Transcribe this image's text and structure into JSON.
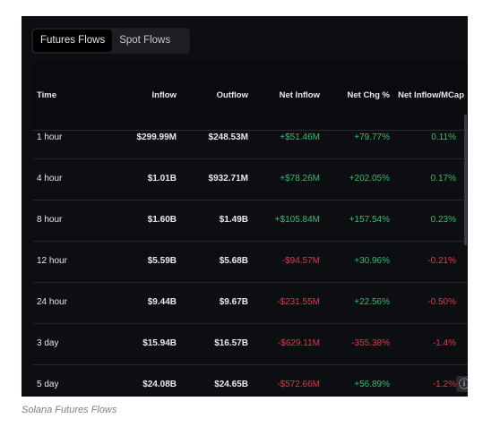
{
  "tabs": [
    {
      "label": "Futures Flows",
      "active": true
    },
    {
      "label": "Spot Flows",
      "active": false
    }
  ],
  "columns": [
    "Time",
    "Inflow",
    "Outflow",
    "Net Inflow",
    "Net Chg %",
    "Net Inflow/MCap"
  ],
  "rows": [
    {
      "time": "1 hour",
      "inflow": "$299.99M",
      "outflow": "$248.53M",
      "net_inflow": "+$51.46M",
      "net_chg": "+79.77%",
      "net_mcap": "0.11%",
      "net_inflow_sign": "pos",
      "net_chg_sign": "pos",
      "net_mcap_sign": "pos"
    },
    {
      "time": "4 hour",
      "inflow": "$1.01B",
      "outflow": "$932.71M",
      "net_inflow": "+$78.26M",
      "net_chg": "+202.05%",
      "net_mcap": "0.17%",
      "net_inflow_sign": "pos",
      "net_chg_sign": "pos",
      "net_mcap_sign": "pos"
    },
    {
      "time": "8 hour",
      "inflow": "$1.60B",
      "outflow": "$1.49B",
      "net_inflow": "+$105.84M",
      "net_chg": "+157.54%",
      "net_mcap": "0.23%",
      "net_inflow_sign": "pos",
      "net_chg_sign": "pos",
      "net_mcap_sign": "pos"
    },
    {
      "time": "12 hour",
      "inflow": "$5.59B",
      "outflow": "$5.68B",
      "net_inflow": "-$94.57M",
      "net_chg": "+30.96%",
      "net_mcap": "-0.21%",
      "net_inflow_sign": "neg",
      "net_chg_sign": "pos",
      "net_mcap_sign": "neg"
    },
    {
      "time": "24 hour",
      "inflow": "$9.44B",
      "outflow": "$9.67B",
      "net_inflow": "-$231.55M",
      "net_chg": "+22.56%",
      "net_mcap": "-0.50%",
      "net_inflow_sign": "neg",
      "net_chg_sign": "pos",
      "net_mcap_sign": "neg"
    },
    {
      "time": "3 day",
      "inflow": "$15.94B",
      "outflow": "$16.57B",
      "net_inflow": "-$629.11M",
      "net_chg": "-355.38%",
      "net_mcap": "-1.4%",
      "net_inflow_sign": "neg",
      "net_chg_sign": "neg",
      "net_mcap_sign": "neg"
    },
    {
      "time": "5 day",
      "inflow": "$24.08B",
      "outflow": "$24.65B",
      "net_inflow": "-$572.66M",
      "net_chg": "+56.89%",
      "net_mcap": "-1.2%",
      "net_inflow_sign": "neg",
      "net_chg_sign": "pos",
      "net_mcap_sign": "neg"
    }
  ],
  "info_icon": "info-circle-icon",
  "caption": "Solana Futures Flows",
  "colors": {
    "positive": "#2fbf71",
    "negative": "#e0384a",
    "panel_bg": "#0d0e12"
  }
}
